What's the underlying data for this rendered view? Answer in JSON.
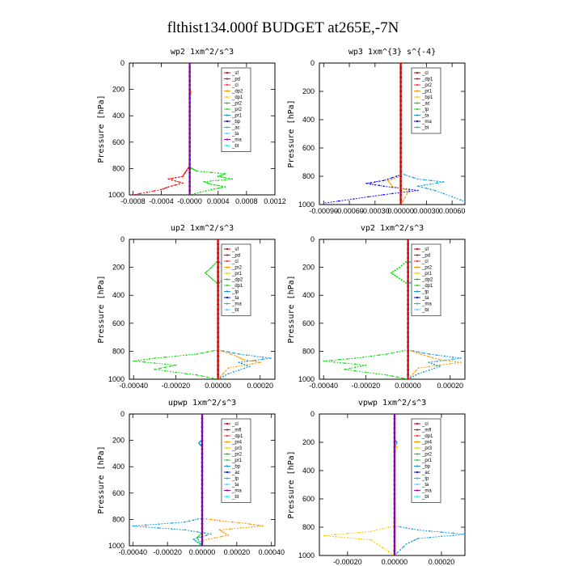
{
  "page_title": "flthist134.000f  BUDGET at265E,-7N",
  "chart_data": [
    {
      "type": "line",
      "title": "wp2   1xm^2/s^3",
      "ylabel": "Pressure  [hPa]",
      "ylim": [
        1000,
        0
      ],
      "xlim": [
        -0.00085,
        0.0012
      ],
      "xticks": [
        -0.0008,
        -0.0004,
        0.0,
        0.0004,
        0.0008,
        0.0012
      ],
      "xtick_labels": [
        "-0.0008",
        "-0.0004",
        "-0.0000",
        "0.0004",
        "0.0008",
        "0.0012"
      ],
      "yticks": [
        0,
        200,
        400,
        600,
        800,
        1000
      ],
      "legend": {
        "placement": "top-right",
        "entries": [
          "_sf",
          "_pd",
          "_cl",
          "_dp2",
          "_dp1",
          "_pr2",
          "_pr2",
          "_pr1",
          "_bp",
          "_ac",
          "_ta",
          "_ma",
          "_bt"
        ]
      },
      "series": [
        {
          "name": "_dp1",
          "color": "#ff0000",
          "points": [
            [
              0,
              0
            ],
            [
              0,
              780
            ],
            [
              -5e-05,
              820
            ],
            [
              -0.0001,
              860
            ],
            [
              -0.0003,
              880
            ],
            [
              -0.0001,
              910
            ],
            [
              -0.0003,
              940
            ],
            [
              -0.0004,
              960
            ],
            [
              -0.0008,
              1000
            ]
          ]
        },
        {
          "name": "_ac",
          "color": "#00dd00",
          "points": [
            [
              0,
              0
            ],
            [
              0,
              790
            ],
            [
              3e-05,
              800
            ],
            [
              0.0001,
              820
            ],
            [
              0.0005,
              840
            ],
            [
              0.0004,
              860
            ],
            [
              0.0006,
              880
            ],
            [
              0.0002,
              900
            ],
            [
              0.0003,
              920
            ],
            [
              0.0005,
              940
            ],
            [
              0.0003,
              960
            ],
            [
              0,
              1000
            ]
          ]
        },
        {
          "name": "_pr1",
          "color": "#ff9900",
          "points": [
            [
              0,
              0
            ],
            [
              0,
              200
            ],
            [
              2e-05,
              220
            ],
            [
              0,
              260
            ],
            [
              0,
              1000
            ]
          ]
        },
        {
          "name": "_bt",
          "color": "#8800aa",
          "points": [
            [
              0,
              0
            ],
            [
              0,
              1000
            ]
          ]
        }
      ]
    },
    {
      "type": "line",
      "title": "wp3   1xm^{3} s^{-4}",
      "ylabel": "Pressure  [hPa]",
      "ylim": [
        1000,
        0
      ],
      "xlim": [
        -0.00095,
        0.00075
      ],
      "xticks": [
        -0.0009,
        -0.0006,
        -0.0003,
        0.0,
        0.0003,
        0.0006
      ],
      "xtick_labels": [
        "-0.00090",
        "-0.00060",
        "-0.00030",
        "0.00000",
        "0.00030",
        "0.00060"
      ],
      "yticks": [
        0,
        200,
        400,
        600,
        800,
        1000
      ],
      "legend": {
        "placement": "top-right",
        "entries": [
          "_cl",
          "_dp1",
          "_pr2",
          "_pr1",
          "_bp1",
          "_ac",
          "_tp",
          "_ta",
          "_ma",
          "_bt"
        ]
      },
      "series": [
        {
          "name": "_ta",
          "color": "#0000ff",
          "points": [
            [
              0,
              0
            ],
            [
              0,
              790
            ],
            [
              -0.0002,
              830
            ],
            [
              -0.0004,
              850
            ],
            [
              -0.0002,
              870
            ],
            [
              0.0002,
              900
            ],
            [
              -0.0002,
              930
            ],
            [
              -0.0009,
              990
            ]
          ]
        },
        {
          "name": "_tp",
          "color": "#1199dd",
          "points": [
            [
              0,
              0
            ],
            [
              0,
              780
            ],
            [
              0.0002,
              820
            ],
            [
              0.0005,
              840
            ],
            [
              0.0002,
              870
            ],
            [
              0.0004,
              900
            ],
            [
              0.0008,
              990
            ]
          ]
        },
        {
          "name": "_pr2",
          "color": "#ff9900",
          "points": [
            [
              0,
              0
            ],
            [
              0,
              800
            ],
            [
              -0.00015,
              830
            ],
            [
              -0.0001,
              870
            ],
            [
              0.0001,
              900
            ],
            [
              0,
              1000
            ]
          ]
        },
        {
          "name": "_dp1",
          "color": "#cc0000",
          "points": [
            [
              0,
              0
            ],
            [
              0,
              1000
            ]
          ]
        }
      ]
    },
    {
      "type": "line",
      "title": "up2   1xm^2/s^3",
      "ylabel": "Pressure  [hPa]",
      "ylim": [
        1000,
        0
      ],
      "xlim": [
        -0.00042,
        0.00027
      ],
      "xticks": [
        -0.0004,
        -0.0002,
        0.0,
        0.0002
      ],
      "xtick_labels": [
        "-0.00040",
        "-0.00020",
        "0.00000",
        "0.00020"
      ],
      "yticks": [
        0,
        200,
        400,
        600,
        800,
        1000
      ],
      "legend": {
        "placement": "top-right",
        "entries": [
          "_sf",
          "_pd",
          "_cl",
          "_pr2",
          "_pr1",
          "_dp2",
          "_dp1",
          "_tp",
          "_ta",
          "_ma",
          "_bt"
        ]
      },
      "series": [
        {
          "name": "_dp1",
          "color": "#00dd00",
          "points": [
            [
              0,
              0
            ],
            [
              0,
              150
            ],
            [
              -3e-05,
              200
            ],
            [
              -6e-05,
              240
            ],
            [
              -3e-05,
              280
            ],
            [
              0,
              320
            ],
            [
              0,
              790
            ],
            [
              -0.0001,
              820
            ],
            [
              -0.0003,
              850
            ],
            [
              -0.0004,
              870
            ],
            [
              -0.0002,
              900
            ],
            [
              -0.0003,
              930
            ],
            [
              -0.0001,
              970
            ],
            [
              0,
              1000
            ]
          ]
        },
        {
          "name": "_tp",
          "color": "#1199dd",
          "points": [
            [
              0,
              0
            ],
            [
              0,
              150
            ],
            [
              3e-05,
              200
            ],
            [
              7e-05,
              240
            ],
            [
              3e-05,
              280
            ],
            [
              0,
              320
            ],
            [
              0,
              790
            ],
            [
              0.0001,
              820
            ],
            [
              0.00025,
              850
            ],
            [
              0.0001,
              880
            ],
            [
              0.00015,
              910
            ],
            [
              5e-05,
              960
            ],
            [
              0,
              1000
            ]
          ]
        },
        {
          "name": "_pr1",
          "color": "#ff9900",
          "points": [
            [
              0,
              0
            ],
            [
              0,
              790
            ],
            [
              8e-05,
              830
            ],
            [
              0.00012,
              860
            ],
            [
              0.0002,
              880
            ],
            [
              5e-05,
              920
            ],
            [
              0,
              1000
            ]
          ]
        },
        {
          "name": "_sf",
          "color": "#cc0000",
          "points": [
            [
              0,
              0
            ],
            [
              0,
              1000
            ]
          ]
        }
      ]
    },
    {
      "type": "line",
      "title": "vp2   1xm^2/s^3",
      "ylabel": "Pressure  [hPa]",
      "ylim": [
        1000,
        0
      ],
      "xlim": [
        -0.00042,
        0.00027
      ],
      "xticks": [
        -0.0004,
        -0.0002,
        0.0,
        0.0002
      ],
      "xtick_labels": [
        "-0.00040",
        "-0.00020",
        "0.00000",
        "0.00020"
      ],
      "yticks": [
        0,
        200,
        400,
        600,
        800,
        1000
      ],
      "legend": {
        "placement": "top-right",
        "entries": [
          "_sf",
          "_pd",
          "_cl",
          "_pr2",
          "_pr1",
          "_dp2",
          "_dp1",
          "_tp",
          "_ta",
          "_ma",
          "_bt"
        ]
      },
      "series": [
        {
          "name": "_dp1",
          "color": "#00dd00",
          "points": [
            [
              0,
              0
            ],
            [
              0,
              150
            ],
            [
              -4e-05,
              200
            ],
            [
              -8e-05,
              240
            ],
            [
              -4e-05,
              280
            ],
            [
              0,
              320
            ],
            [
              0,
              790
            ],
            [
              -0.0001,
              820
            ],
            [
              -0.00025,
              850
            ],
            [
              -0.0004,
              870
            ],
            [
              -0.0002,
              900
            ],
            [
              -0.0003,
              930
            ],
            [
              -0.0001,
              970
            ],
            [
              0,
              1000
            ]
          ]
        },
        {
          "name": "_tp",
          "color": "#1199dd",
          "points": [
            [
              0,
              0
            ],
            [
              0,
              150
            ],
            [
              4e-05,
              200
            ],
            [
              8e-05,
              240
            ],
            [
              4e-05,
              280
            ],
            [
              0,
              320
            ],
            [
              0,
              790
            ],
            [
              0.0001,
              820
            ],
            [
              0.00025,
              850
            ],
            [
              0.0001,
              880
            ],
            [
              0.00015,
              910
            ],
            [
              5e-05,
              960
            ],
            [
              0,
              1000
            ]
          ]
        },
        {
          "name": "_pr1",
          "color": "#ff9900",
          "points": [
            [
              0,
              0
            ],
            [
              0,
              790
            ],
            [
              8e-05,
              830
            ],
            [
              0.00015,
              860
            ],
            [
              0.00025,
              880
            ],
            [
              5e-05,
              920
            ],
            [
              0,
              1000
            ]
          ]
        },
        {
          "name": "_sf",
          "color": "#cc0000",
          "points": [
            [
              0,
              0
            ],
            [
              0,
              1000
            ]
          ]
        }
      ]
    },
    {
      "type": "line",
      "title": "upwp   1xm^2/s^3",
      "ylabel": "Pressure  [hPa]",
      "ylim": [
        1000,
        0
      ],
      "xlim": [
        -0.00042,
        0.00042
      ],
      "xticks": [
        -0.0004,
        -0.0002,
        0.0,
        0.0002,
        0.0004
      ],
      "xtick_labels": [
        "-0.00040",
        "-0.00020",
        "0.00000",
        "0.00020",
        "0.00040"
      ],
      "yticks": [
        0,
        200,
        400,
        600,
        800,
        1000
      ],
      "legend": {
        "placement": "top-right",
        "entries": [
          "_cl",
          "_mfl",
          "_dp1",
          "_pr4",
          "_pr3",
          "_pr2",
          "_pr1",
          "_bp",
          "_ac",
          "_tp",
          "_ta",
          "_ma",
          "_bt"
        ]
      },
      "series": [
        {
          "name": "_tp",
          "color": "#1199dd",
          "points": [
            [
              0,
              0
            ],
            [
              0,
              200
            ],
            [
              -2e-05,
              220
            ],
            [
              0,
              250
            ],
            [
              0,
              790
            ],
            [
              -0.0001,
              820
            ],
            [
              -0.0004,
              850
            ],
            [
              -0.0001,
              880
            ],
            [
              5e-05,
              910
            ],
            [
              -5e-05,
              950
            ],
            [
              0,
              1000
            ]
          ]
        },
        {
          "name": "_pr1",
          "color": "#ff9900",
          "points": [
            [
              0,
              0
            ],
            [
              0,
              790
            ],
            [
              0.0001,
              810
            ],
            [
              0.00025,
              830
            ],
            [
              0.00035,
              850
            ],
            [
              0.0001,
              880
            ],
            [
              0.00015,
              920
            ],
            [
              0,
              960
            ],
            [
              0,
              1000
            ]
          ]
        },
        {
          "name": "_ac",
          "color": "#00dd00",
          "points": [
            [
              0,
              0
            ],
            [
              0,
              900
            ],
            [
              -3e-05,
              940
            ],
            [
              0,
              1000
            ]
          ]
        },
        {
          "name": "_mfl",
          "color": "#8800aa",
          "points": [
            [
              0,
              0
            ],
            [
              0,
              1000
            ]
          ]
        }
      ]
    },
    {
      "type": "line",
      "title": "vpwp   1xm^2/s^3",
      "ylabel": "Pressure  [hPa]",
      "ylim": [
        1000,
        0
      ],
      "xlim": [
        -0.00032,
        0.0003
      ],
      "xticks": [
        -0.0002,
        0.0,
        0.0002
      ],
      "xtick_labels": [
        "-0.00020",
        "0.00000",
        "0.00020"
      ],
      "yticks": [
        0,
        200,
        400,
        600,
        800,
        1000
      ],
      "legend": {
        "placement": "top-right",
        "entries": [
          "_cl",
          "_mfl",
          "_dp1",
          "_pr4",
          "_pr3",
          "_pr2",
          "_pr1",
          "_bp",
          "_ac",
          "_tp",
          "_ta",
          "_ma",
          "_bt"
        ]
      },
      "series": [
        {
          "name": "_tp",
          "color": "#1199dd",
          "points": [
            [
              0,
              0
            ],
            [
              0,
              180
            ],
            [
              1e-05,
              200
            ],
            [
              0,
              240
            ],
            [
              0,
              790
            ],
            [
              0.0001,
              820
            ],
            [
              0.0003,
              850
            ],
            [
              0.0001,
              880
            ],
            [
              5e-05,
              920
            ],
            [
              0,
              1000
            ]
          ]
        },
        {
          "name": "_pr1",
          "color": "#ffcc00",
          "points": [
            [
              0,
              0
            ],
            [
              0,
              200
            ],
            [
              1e-05,
              230
            ],
            [
              0,
              280
            ],
            [
              0,
              790
            ],
            [
              -0.0001,
              830
            ],
            [
              -0.0003,
              860
            ],
            [
              -0.0001,
              890
            ],
            [
              0,
              1000
            ]
          ]
        },
        {
          "name": "_mfl",
          "color": "#8800aa",
          "points": [
            [
              0,
              0
            ],
            [
              0,
              1000
            ]
          ]
        }
      ]
    }
  ]
}
